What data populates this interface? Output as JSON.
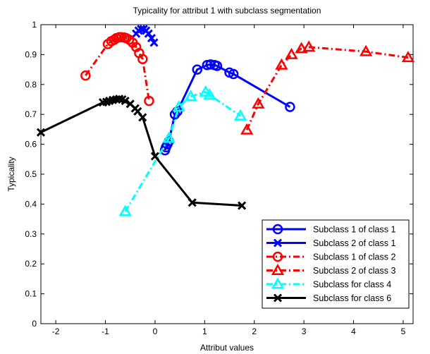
{
  "chart_data": {
    "type": "line",
    "title": "Typicality for attribut 1 with subclass segmentation",
    "xlabel": "Attribut values",
    "ylabel": "Typicality",
    "xlim": [
      -2.3,
      5.2
    ],
    "ylim": [
      0,
      1
    ],
    "xticks": [
      -2,
      -1,
      0,
      1,
      2,
      3,
      4,
      5
    ],
    "yticks": [
      0,
      0.1,
      0.2,
      0.3,
      0.4,
      0.5,
      0.6,
      0.7,
      0.8,
      0.9,
      1
    ],
    "xtick_labels": [
      "-2",
      "-1",
      "0",
      "1",
      "2",
      "3",
      "4",
      "5"
    ],
    "ytick_labels": [
      "0",
      "0.1",
      "0.2",
      "0.3",
      "0.4",
      "0.5",
      "0.6",
      "0.7",
      "0.8",
      "0.9",
      "1"
    ],
    "grid": false,
    "legend_position": "bottom-right",
    "series": [
      {
        "name": "Subclass 1 of class 1",
        "color": "#0000ff",
        "marker": "circle",
        "linestyle": "solid",
        "x": [
          0.2,
          0.22,
          0.25,
          0.28,
          0.4,
          0.45,
          0.85,
          1.05,
          1.12,
          1.2,
          1.25,
          1.5,
          1.58,
          2.72
        ],
        "y": [
          0.58,
          0.59,
          0.6,
          0.61,
          0.7,
          0.71,
          0.85,
          0.865,
          0.867,
          0.865,
          0.862,
          0.84,
          0.835,
          0.725
        ]
      },
      {
        "name": "Subclass 2 of class 1",
        "color": "#0000ff",
        "marker": "x",
        "linestyle": "solid",
        "x": [
          -0.38,
          -0.33,
          -0.28,
          -0.23,
          -0.18,
          -0.13,
          -0.07,
          -0.02
        ],
        "y": [
          0.97,
          0.98,
          0.985,
          0.985,
          0.98,
          0.97,
          0.955,
          0.94
        ]
      },
      {
        "name": "Subclass 1 of class 2",
        "color": "#ff0000",
        "marker": "circle",
        "linestyle": "dashdot",
        "x": [
          -1.4,
          -0.95,
          -0.88,
          -0.82,
          -0.78,
          -0.72,
          -0.68,
          -0.62,
          -0.58,
          -0.52,
          -0.45,
          -0.38,
          -0.32,
          -0.25,
          -0.12
        ],
        "y": [
          0.83,
          0.935,
          0.945,
          0.95,
          0.955,
          0.958,
          0.958,
          0.957,
          0.955,
          0.95,
          0.94,
          0.925,
          0.905,
          0.885,
          0.745
        ]
      },
      {
        "name": "Subclass 2 of class 3",
        "color": "#ff0000",
        "marker": "triangle",
        "linestyle": "dashdot",
        "x": [
          1.85,
          2.08,
          2.55,
          2.75,
          2.95,
          3.1,
          4.25,
          5.1
        ],
        "y": [
          0.648,
          0.735,
          0.865,
          0.9,
          0.92,
          0.925,
          0.91,
          0.89
        ]
      },
      {
        "name": "Subclass for class 4",
        "color": "#00ffff",
        "marker": "triangle",
        "linestyle": "dashdot",
        "x": [
          -0.6,
          0.28,
          0.48,
          0.72,
          1.02,
          1.1,
          1.72
        ],
        "y": [
          0.375,
          0.62,
          0.725,
          0.76,
          0.775,
          0.765,
          0.695
        ]
      },
      {
        "name": "Subclass for class 6",
        "color": "#000000",
        "marker": "x",
        "linestyle": "solid",
        "x": [
          -2.3,
          -1.05,
          -0.98,
          -0.92,
          -0.85,
          -0.78,
          -0.72,
          -0.66,
          -0.6,
          -0.5,
          -0.4,
          -0.35,
          -0.25,
          0,
          0.75,
          1.75
        ],
        "y": [
          0.64,
          0.74,
          0.742,
          0.745,
          0.748,
          0.75,
          0.752,
          0.75,
          0.745,
          0.735,
          0.72,
          0.71,
          0.69,
          0.56,
          0.405,
          0.395
        ]
      }
    ]
  }
}
